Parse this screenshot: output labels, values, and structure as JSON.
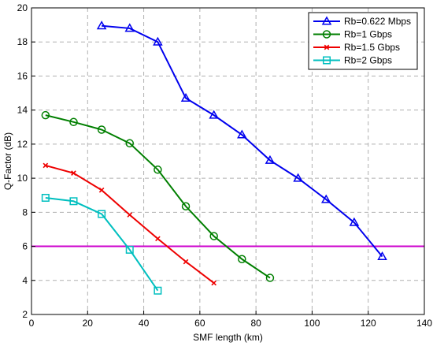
{
  "chart_data": {
    "type": "line",
    "title": "",
    "xlabel": "SMF length (km)",
    "ylabel": "Q-Factor (dB)",
    "xlim": [
      0,
      140
    ],
    "ylim": [
      2,
      20
    ],
    "xticks": [
      0,
      20,
      40,
      60,
      80,
      100,
      120,
      140
    ],
    "yticks": [
      2,
      4,
      6,
      8,
      10,
      12,
      14,
      16,
      18,
      20
    ],
    "grid": true,
    "legend_position": "top-right",
    "series": [
      {
        "name": "Rb=0.622 Mbps",
        "color": "#0000ee",
        "marker": "triangle",
        "x": [
          25,
          35,
          45,
          55,
          65,
          75,
          85,
          95,
          105,
          115,
          125
        ],
        "y": [
          18.95,
          18.8,
          18.0,
          14.7,
          13.7,
          12.55,
          11.05,
          10.0,
          8.75,
          7.4,
          5.4
        ]
      },
      {
        "name": "Rb=1 Gbps",
        "color": "#007f00",
        "marker": "circle",
        "x": [
          5,
          15,
          25,
          35,
          45,
          55,
          65,
          75,
          85
        ],
        "y": [
          13.7,
          13.3,
          12.85,
          12.05,
          10.5,
          8.35,
          6.6,
          5.25,
          4.15
        ]
      },
      {
        "name": "Rb=1.5 Gbps",
        "color": "#ee0000",
        "marker": "x",
        "x": [
          5,
          15,
          25,
          35,
          45,
          55,
          65
        ],
        "y": [
          10.75,
          10.3,
          9.3,
          7.85,
          6.45,
          5.1,
          3.85
        ]
      },
      {
        "name": "Rb=2 Gbps",
        "color": "#00bfbf",
        "marker": "square",
        "x": [
          5,
          15,
          25,
          35,
          45
        ],
        "y": [
          8.85,
          8.65,
          7.9,
          5.8,
          3.4
        ]
      }
    ],
    "reference_line": {
      "y": 6,
      "color": "#cc00cc"
    }
  }
}
